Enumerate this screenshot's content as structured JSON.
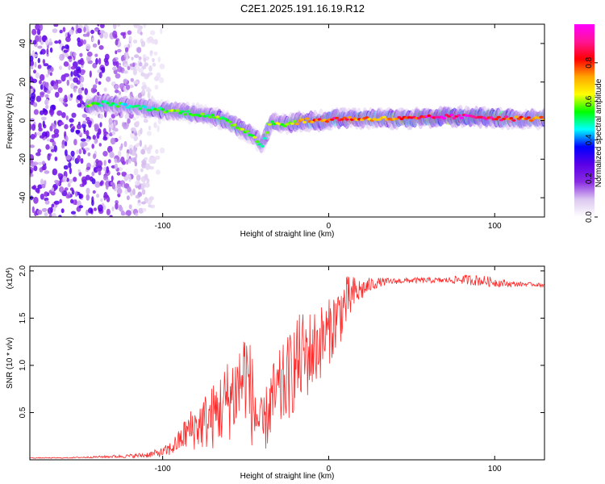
{
  "figure": {
    "title": "C2E1.2025.191.16.19.R12"
  },
  "chart_data": [
    {
      "type": "heatmap",
      "xlabel": "Height of straight line (km)",
      "ylabel": "Frequency (Hz)",
      "xlim": [
        -180,
        130
      ],
      "ylim": [
        -50,
        50
      ],
      "xticks": [
        -100,
        0,
        100
      ],
      "yticks": [
        -40,
        -20,
        0,
        20,
        40
      ],
      "colorbar": {
        "label": "Normalized spectral amplitude",
        "range": [
          0,
          1
        ],
        "ticks": [
          "0.0",
          "0.2",
          "0.4",
          "0.6",
          "0.8"
        ],
        "tick_values": [
          0.0,
          0.2,
          0.4,
          0.6,
          0.8
        ],
        "colors": [
          "#ffffff",
          "#dcc8f0",
          "#8a2be2",
          "#5a00e6",
          "#0000ff",
          "#00ffff",
          "#00ff00",
          "#ffff00",
          "#ffa500",
          "#ff0000",
          "#ff1493",
          "#ff00ff"
        ]
      },
      "ridge": {
        "x": [
          -145,
          -135,
          -125,
          -115,
          -105,
          -95,
          -85,
          -75,
          -65,
          -55,
          -45,
          -40,
          -35,
          -25,
          -15,
          -5,
          5,
          15,
          30,
          50,
          70,
          90,
          110,
          130
        ],
        "freq": [
          8,
          9,
          8,
          7,
          6,
          5,
          4,
          3,
          1,
          -3,
          -8,
          -13,
          -1,
          -2,
          0,
          0,
          1,
          1,
          1,
          1,
          2,
          2,
          1,
          1
        ],
        "amplitude": [
          0.55,
          0.5,
          0.5,
          0.45,
          0.5,
          0.55,
          0.55,
          0.55,
          0.55,
          0.6,
          0.55,
          0.5,
          0.55,
          0.6,
          0.7,
          0.75,
          0.85,
          0.75,
          0.7,
          0.8,
          0.95,
          0.9,
          0.8,
          0.7
        ]
      },
      "noise_region": {
        "x": [
          -180,
          -100
        ],
        "amplitude": 0.25
      }
    },
    {
      "type": "line",
      "xlabel": "Height of straight line (km)",
      "ylabel": "SNR (10 * v/v)",
      "y_multiplier_label": "(x10",
      "y_multiplier_exp": "4",
      "y_multiplier_close": ")",
      "xlim": [
        -180,
        130
      ],
      "ylim": [
        0,
        2.05
      ],
      "xticks": [
        -100,
        0,
        100
      ],
      "yticks": [
        "0.5",
        "1.0",
        "1.5",
        "2.0"
      ],
      "ytick_values": [
        0.5,
        1.0,
        1.5,
        2.0
      ],
      "line_color": "#ff2a2a",
      "series": [
        {
          "x": [
            -180,
            -160,
            -140,
            -120,
            -110,
            -100,
            -95,
            -90,
            -85,
            -80,
            -75,
            -70,
            -65,
            -60,
            -55,
            -50,
            -45,
            -40,
            -35,
            -30,
            -25,
            -20,
            -15,
            -10,
            -5,
            0,
            5,
            10,
            15,
            20,
            25,
            30,
            40,
            50,
            60,
            70,
            80,
            90,
            100,
            110,
            120,
            130
          ],
          "values": [
            0.02,
            0.02,
            0.03,
            0.04,
            0.05,
            0.08,
            0.12,
            0.2,
            0.3,
            0.35,
            0.4,
            0.45,
            0.55,
            0.65,
            0.75,
            0.95,
            0.55,
            0.3,
            0.6,
            0.7,
            0.85,
            1.0,
            1.1,
            1.15,
            1.25,
            1.35,
            1.5,
            1.65,
            1.75,
            1.8,
            1.85,
            1.88,
            1.89,
            1.9,
            1.9,
            1.9,
            1.91,
            1.9,
            1.88,
            1.86,
            1.86,
            1.85
          ],
          "noise": [
            0.005,
            0.005,
            0.01,
            0.02,
            0.03,
            0.05,
            0.08,
            0.12,
            0.2,
            0.25,
            0.3,
            0.35,
            0.4,
            0.45,
            0.5,
            0.55,
            0.5,
            0.3,
            0.4,
            0.45,
            0.45,
            0.5,
            0.5,
            0.45,
            0.4,
            0.35,
            0.35,
            0.3,
            0.2,
            0.12,
            0.08,
            0.05,
            0.03,
            0.03,
            0.03,
            0.03,
            0.05,
            0.06,
            0.05,
            0.03,
            0.02,
            0.02
          ]
        }
      ]
    }
  ]
}
